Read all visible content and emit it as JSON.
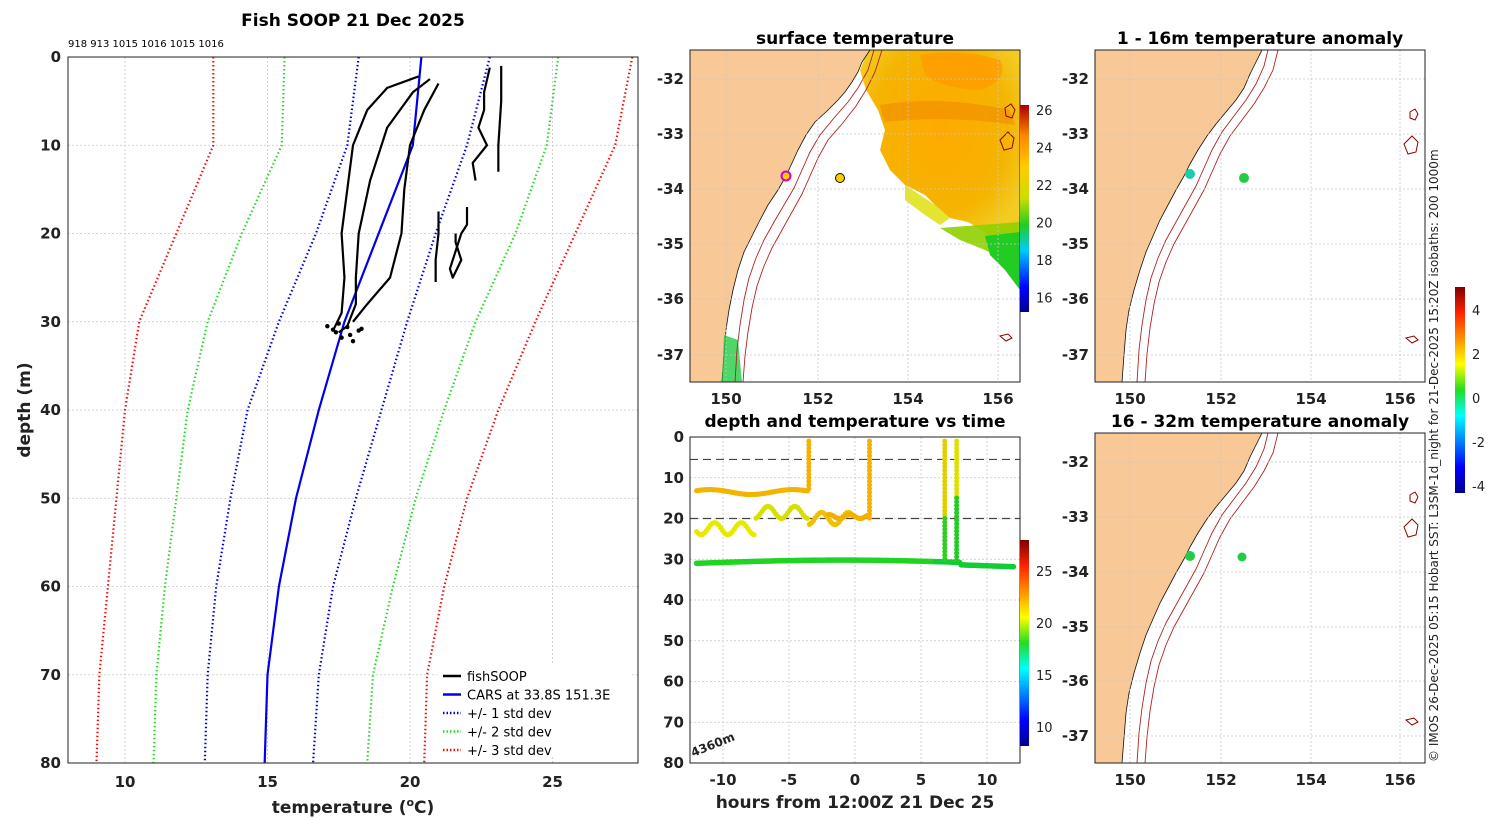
{
  "colors": {
    "land": "#f8c896",
    "cars": "#0000ee",
    "std1": "#0000dd",
    "std2": "#22dd22",
    "std3": "#ee1111",
    "fish": "#000000"
  },
  "chart_data": [
    {
      "type": "line",
      "title": "Fish SOOP 21 Dec 2025",
      "top_note": "918 913 1015 1016 1015 1016",
      "xlabel_prefix": "temperature (",
      "xlabel_sup": "o",
      "xlabel_suffix": "C)",
      "ylabel": "depth (m)",
      "xlim": [
        8,
        28
      ],
      "ylim": [
        0,
        80
      ],
      "x_ticks": [
        10,
        15,
        20,
        25
      ],
      "y_ticks": [
        0,
        10,
        20,
        30,
        40,
        50,
        60,
        70,
        80
      ],
      "legend": [
        {
          "label": "fishSOOP",
          "color": "#000000",
          "style": "solid"
        },
        {
          "label": "CARS at 33.8S 151.3E",
          "color": "#0000ee",
          "style": "solid"
        },
        {
          "label": "+/- 1 std dev",
          "color": "#0000dd",
          "style": "dotted"
        },
        {
          "label": "+/- 2 std dev",
          "color": "#22dd22",
          "style": "dotted"
        },
        {
          "label": "+/- 3 std dev",
          "color": "#ee1111",
          "style": "dotted"
        }
      ],
      "series": [
        {
          "name": "CARS",
          "color": "#0000ee",
          "style": "solid",
          "x": [
            20.4,
            20.1,
            18.9,
            17.7,
            16.8,
            16.0,
            15.4,
            15.0,
            14.9
          ],
          "y": [
            0,
            10,
            20,
            30,
            40,
            50,
            60,
            70,
            80
          ]
        },
        {
          "name": "-1 std",
          "color": "#0000dd",
          "style": "dotted",
          "x": [
            18.2,
            17.8,
            16.7,
            15.4,
            14.3,
            13.7,
            13.2,
            12.9,
            12.8
          ],
          "y": [
            0,
            10,
            20,
            30,
            40,
            50,
            60,
            70,
            80
          ]
        },
        {
          "name": "+1 std",
          "color": "#0000dd",
          "style": "dotted",
          "x": [
            22.8,
            22.0,
            20.9,
            19.9,
            19.0,
            18.1,
            17.3,
            16.8,
            16.6
          ],
          "y": [
            0,
            10,
            20,
            30,
            40,
            50,
            60,
            70,
            80
          ]
        },
        {
          "name": "-2 std",
          "color": "#22dd22",
          "style": "dotted",
          "x": [
            15.6,
            15.5,
            14.1,
            12.9,
            12.2,
            11.8,
            11.4,
            11.1,
            11.0
          ],
          "y": [
            0,
            10,
            20,
            30,
            40,
            50,
            60,
            70,
            80
          ]
        },
        {
          "name": "+2 std",
          "color": "#22dd22",
          "style": "dotted",
          "x": [
            25.2,
            24.8,
            23.7,
            22.3,
            21.2,
            20.2,
            19.4,
            18.7,
            18.5
          ],
          "y": [
            0,
            10,
            20,
            30,
            40,
            50,
            60,
            70,
            80
          ]
        },
        {
          "name": "-3 std",
          "color": "#ee1111",
          "style": "dotted",
          "x": [
            13.1,
            13.1,
            11.8,
            10.5,
            10.0,
            9.7,
            9.4,
            9.1,
            9.0
          ],
          "y": [
            0,
            10,
            20,
            30,
            40,
            50,
            60,
            70,
            80
          ]
        },
        {
          "name": "+3 std",
          "color": "#ee1111",
          "style": "dotted",
          "x": [
            27.8,
            27.2,
            25.8,
            24.4,
            23.1,
            22.0,
            21.2,
            20.6,
            20.5
          ],
          "y": [
            0,
            10,
            20,
            30,
            40,
            50,
            60,
            70,
            80
          ]
        },
        {
          "name": "fishSOOP cast 1",
          "color": "#000000",
          "style": "solid",
          "x": [
            20.3,
            19.2,
            18.5,
            18.0,
            17.8,
            17.6,
            17.7,
            17.6,
            17.3
          ],
          "y": [
            2.2,
            3.5,
            6.0,
            10.0,
            15.0,
            20.0,
            25.0,
            29.0,
            31.0
          ]
        },
        {
          "name": "fishSOOP cast 2",
          "color": "#000000",
          "style": "solid",
          "x": [
            20.7,
            20.1,
            19.2,
            18.6,
            18.2,
            18.1,
            18.1,
            17.8,
            17.5
          ],
          "y": [
            2.5,
            4.0,
            8.0,
            14.0,
            20.0,
            25.0,
            28.0,
            30.5,
            31.2
          ]
        },
        {
          "name": "fishSOOP cast 3",
          "color": "#000000",
          "style": "solid",
          "x": [
            21.0,
            20.5,
            20.0,
            19.8,
            19.7,
            19.3,
            18.5,
            18.0
          ],
          "y": [
            3.0,
            6.0,
            10.0,
            15.0,
            20.0,
            25.0,
            28.0,
            30.0
          ]
        },
        {
          "name": "fishSOOP cast 4",
          "color": "#000000",
          "style": "solid",
          "x": [
            22.8,
            22.6,
            22.6,
            22.4,
            22.7,
            22.2,
            22.3
          ],
          "y": [
            1.2,
            4.0,
            6.0,
            8.0,
            10.0,
            12.0,
            14.0
          ]
        },
        {
          "name": "fishSOOP cast 5",
          "color": "#000000",
          "style": "solid",
          "x": [
            23.2,
            23.2,
            23.1,
            23.1
          ],
          "y": [
            1.0,
            5.0,
            10.0,
            13.0
          ]
        },
        {
          "name": "fishSOOP cast 6",
          "color": "#000000",
          "style": "solid",
          "x": [
            22.0,
            22.0,
            21.8,
            21.4,
            21.5,
            21.8,
            21.6,
            21.6
          ],
          "y": [
            17.0,
            19.0,
            20.0,
            24.0,
            25.0,
            23.0,
            21.0,
            20.0
          ]
        },
        {
          "name": "fishSOOP cast 7",
          "color": "#000000",
          "style": "solid",
          "x": [
            21.0,
            21.0,
            20.9,
            20.9
          ],
          "y": [
            17.5,
            20.0,
            23.0,
            25.5
          ]
        }
      ]
    },
    {
      "type": "heatmap",
      "title": "surface temperature",
      "x_ticks": [
        "150",
        "152",
        "154",
        "156"
      ],
      "y_ticks": [
        "-32",
        "-33",
        "-34",
        "-35",
        "-36",
        "-37"
      ],
      "colorbar_ticks": [
        "26",
        "24",
        "22",
        "20",
        "18",
        "16"
      ],
      "xlim": [
        149.2,
        156.5
      ],
      "ylim": [
        -37.5,
        -31.5
      ],
      "stations": [
        {
          "lon": 151.3,
          "lat": -33.75
        },
        {
          "lon": 152.5,
          "lat": -33.8
        }
      ]
    },
    {
      "type": "scatter",
      "title": "depth and temperature vs time",
      "xlabel": "hours from 12:00Z 21 Dec 25",
      "x_ticks": [
        "-10",
        "-5",
        "0",
        "5",
        "10"
      ],
      "y_ticks": [
        "0",
        "10",
        "20",
        "30",
        "40",
        "50",
        "60",
        "70",
        "80"
      ],
      "colorbar_ticks": [
        "25",
        "20",
        "15",
        "10"
      ],
      "xlim": [
        -12.5,
        12.5
      ],
      "ylim": [
        0,
        80
      ],
      "ref_lines_depth": [
        5.5,
        20
      ],
      "bottom_label": "4360m"
    },
    {
      "type": "heatmap",
      "title": "1 - 16m temperature anomaly",
      "x_ticks": [
        "150",
        "152",
        "154",
        "156"
      ],
      "y_ticks": [
        "-32",
        "-33",
        "-34",
        "-35",
        "-36",
        "-37"
      ],
      "stations": [
        {
          "lon": 151.3,
          "lat": -33.7,
          "color": "#19cfa8"
        },
        {
          "lon": 152.5,
          "lat": -33.75,
          "color": "#22cc44"
        }
      ]
    },
    {
      "type": "heatmap",
      "title": "16 - 32m temperature anomaly",
      "x_ticks": [
        "150",
        "152",
        "154",
        "156"
      ],
      "y_ticks": [
        "-32",
        "-33",
        "-34",
        "-35",
        "-36",
        "-37"
      ],
      "colorbar_ticks": [
        "4",
        "2",
        "0",
        "-2",
        "-4"
      ],
      "stations": [
        {
          "lon": 151.3,
          "lat": -33.7,
          "color": "#22cc44"
        },
        {
          "lon": 152.5,
          "lat": -33.75,
          "color": "#22cc44"
        }
      ]
    }
  ],
  "side_caption": "© IMOS 26-Dec-2025 05:15 Hobart SST: L3SM-1d_night for 21-Dec-2025 15:20Z isobaths: 200  1000m"
}
